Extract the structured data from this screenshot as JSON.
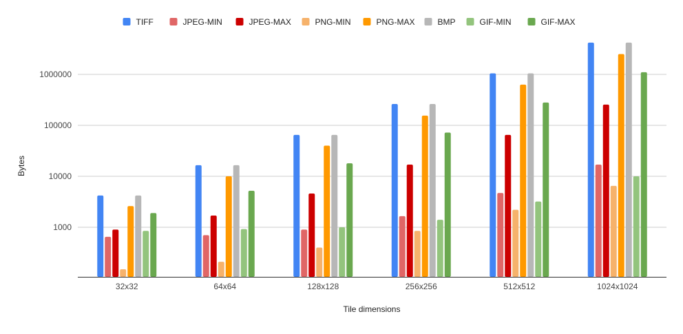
{
  "chart_data": {
    "type": "bar",
    "title": "",
    "xlabel": "Tile dimensions",
    "ylabel": "Bytes",
    "yscale": "log",
    "ylim": [
      200,
      5000000
    ],
    "yticks": [
      1000,
      10000,
      100000,
      1000000
    ],
    "ytick_labels": [
      "1000",
      "10000",
      "100000",
      "1000000"
    ],
    "grid": true,
    "legend_position": "top",
    "categories": [
      "32x32",
      "64x64",
      "128x128",
      "256x256",
      "512x512",
      "1024x1024"
    ],
    "series": [
      {
        "name": "TIFF",
        "color": "#4285f4",
        "values": [
          4200,
          16500,
          65000,
          262000,
          1048000,
          4200000
        ]
      },
      {
        "name": "JPEG-MIN",
        "color": "#e06666",
        "values": [
          650,
          700,
          900,
          1650,
          4700,
          17000
        ]
      },
      {
        "name": "JPEG-MAX",
        "color": "#cc0000",
        "values": [
          900,
          1700,
          4600,
          17000,
          65000,
          255000
        ]
      },
      {
        "name": "PNG-MIN",
        "color": "#f6b26b",
        "values": [
          150,
          210,
          400,
          850,
          2200,
          6500
        ]
      },
      {
        "name": "PNG-MAX",
        "color": "#ff9900",
        "values": [
          2600,
          10000,
          40000,
          155000,
          630000,
          2500000
        ]
      },
      {
        "name": "BMP",
        "color": "#b7b7b7",
        "values": [
          4200,
          16500,
          65000,
          262000,
          1048000,
          4200000
        ]
      },
      {
        "name": "GIF-MIN",
        "color": "#93c47d",
        "values": [
          850,
          920,
          1000,
          1400,
          3200,
          10000
        ]
      },
      {
        "name": "GIF-MAX",
        "color": "#6aa84f",
        "values": [
          1900,
          5200,
          18000,
          72000,
          280000,
          1100000
        ]
      }
    ]
  }
}
